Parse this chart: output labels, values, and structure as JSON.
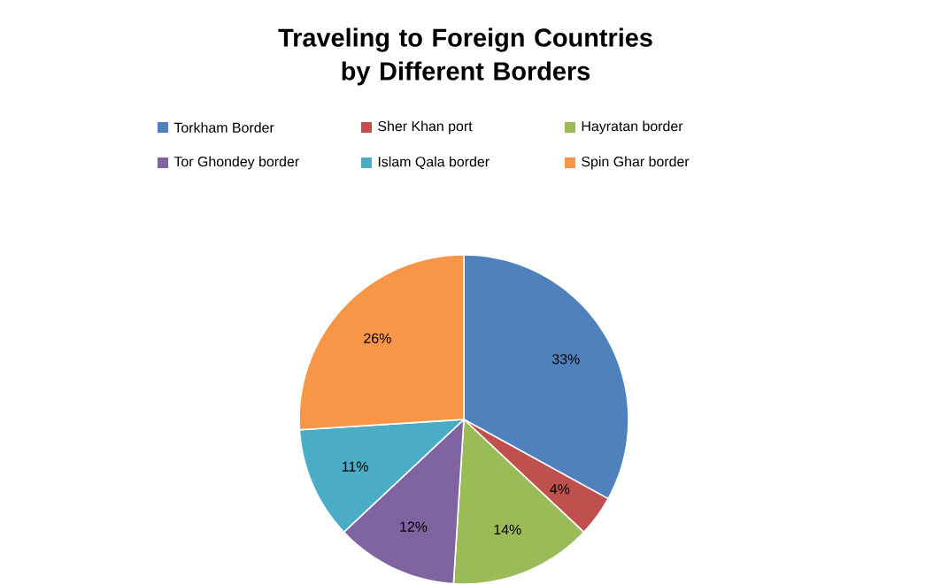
{
  "chart_data": {
    "type": "pie",
    "title": "Traveling to Foreign Countries by Different Borders",
    "categories": [
      "Torkham Border",
      "Sher Khan  port",
      "Hayratan border",
      "Tor Ghondey border",
      "Islam Qala border",
      "Spin Ghar border"
    ],
    "values": [
      33,
      4,
      14,
      12,
      11,
      26
    ],
    "value_labels": [
      "33%",
      "4%",
      "14%",
      "12%",
      "11%",
      "26%"
    ],
    "colors": [
      "#4f81bd",
      "#c0504d",
      "#9bbb59",
      "#8064a2",
      "#4bacc6",
      "#f79646"
    ],
    "legend": "top"
  }
}
